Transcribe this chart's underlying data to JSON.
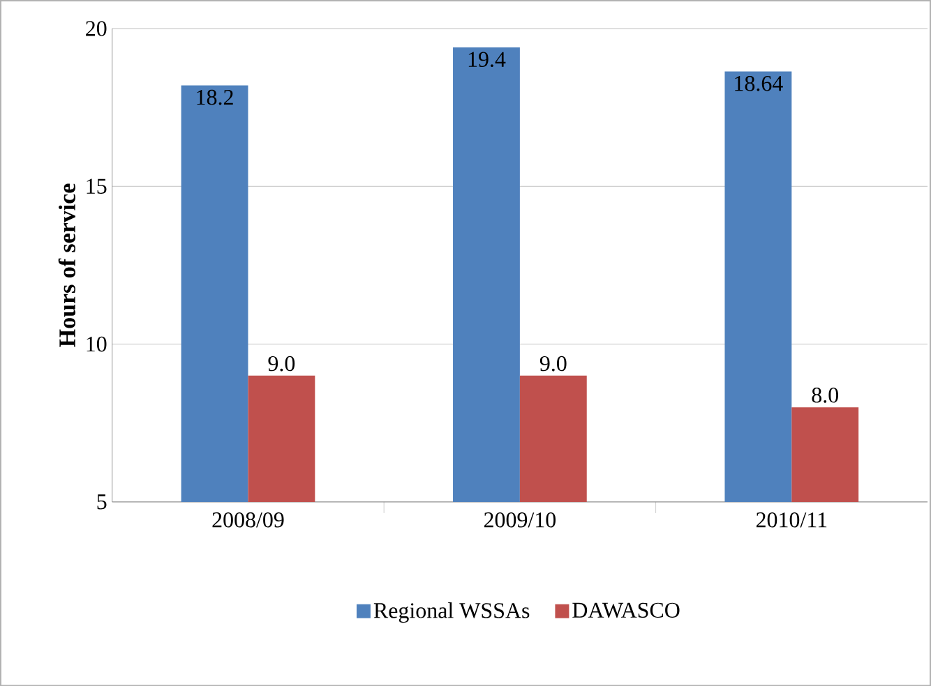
{
  "chart_data": {
    "type": "bar",
    "ylabel": "Hours of service",
    "categories": [
      "2008/09",
      "2009/10",
      "2010/11"
    ],
    "series": [
      {
        "name": "Regional WSSAs",
        "color": "#4f81bd",
        "values": [
          18.2,
          19.4,
          18.64
        ],
        "value_labels": [
          "18.2",
          "19.4",
          "18.64"
        ]
      },
      {
        "name": "DAWASCO",
        "color": "#c0504d",
        "values": [
          9.0,
          9.0,
          8.0
        ],
        "value_labels": [
          "9.0",
          "9.0",
          "8.0"
        ]
      }
    ],
    "ylim": [
      5,
      20
    ],
    "yticks": [
      5,
      10,
      15,
      20
    ],
    "grid": "y",
    "legend": "bottom"
  }
}
